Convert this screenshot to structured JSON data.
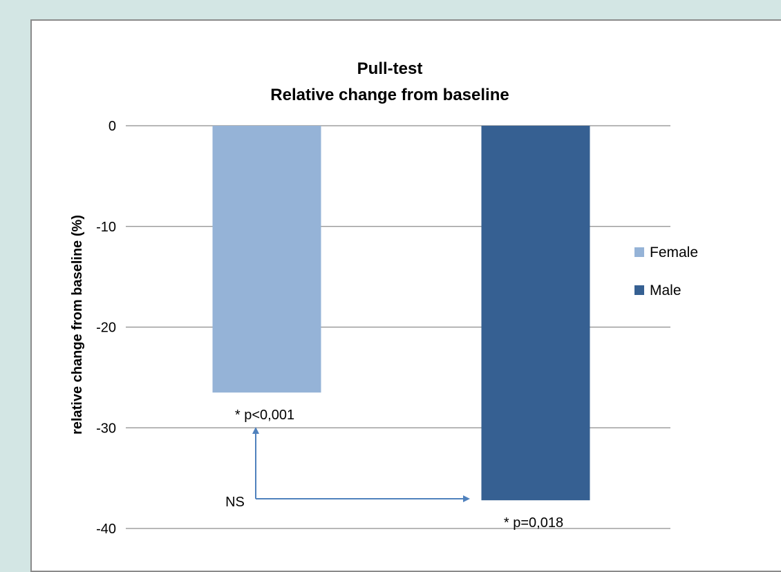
{
  "chart_data": {
    "type": "bar",
    "title": "Pull-test",
    "subtitle": "Relative change from baseline",
    "ylabel": "relative change from baseline (%)",
    "xlabel": "",
    "ylim": [
      -40,
      0
    ],
    "yticks": [
      0,
      -10,
      -20,
      -30,
      -40
    ],
    "grid": true,
    "legend_position": "right",
    "series": [
      {
        "name": "Female",
        "value": -26.5,
        "color": "#95b3d7",
        "label": "* p<0,001"
      },
      {
        "name": "Male",
        "value": -37.2,
        "color": "#366092",
        "label": "* p=0,018"
      }
    ],
    "annotations": [
      {
        "text": "NS",
        "arrow_color": "#4f81bd"
      }
    ]
  }
}
